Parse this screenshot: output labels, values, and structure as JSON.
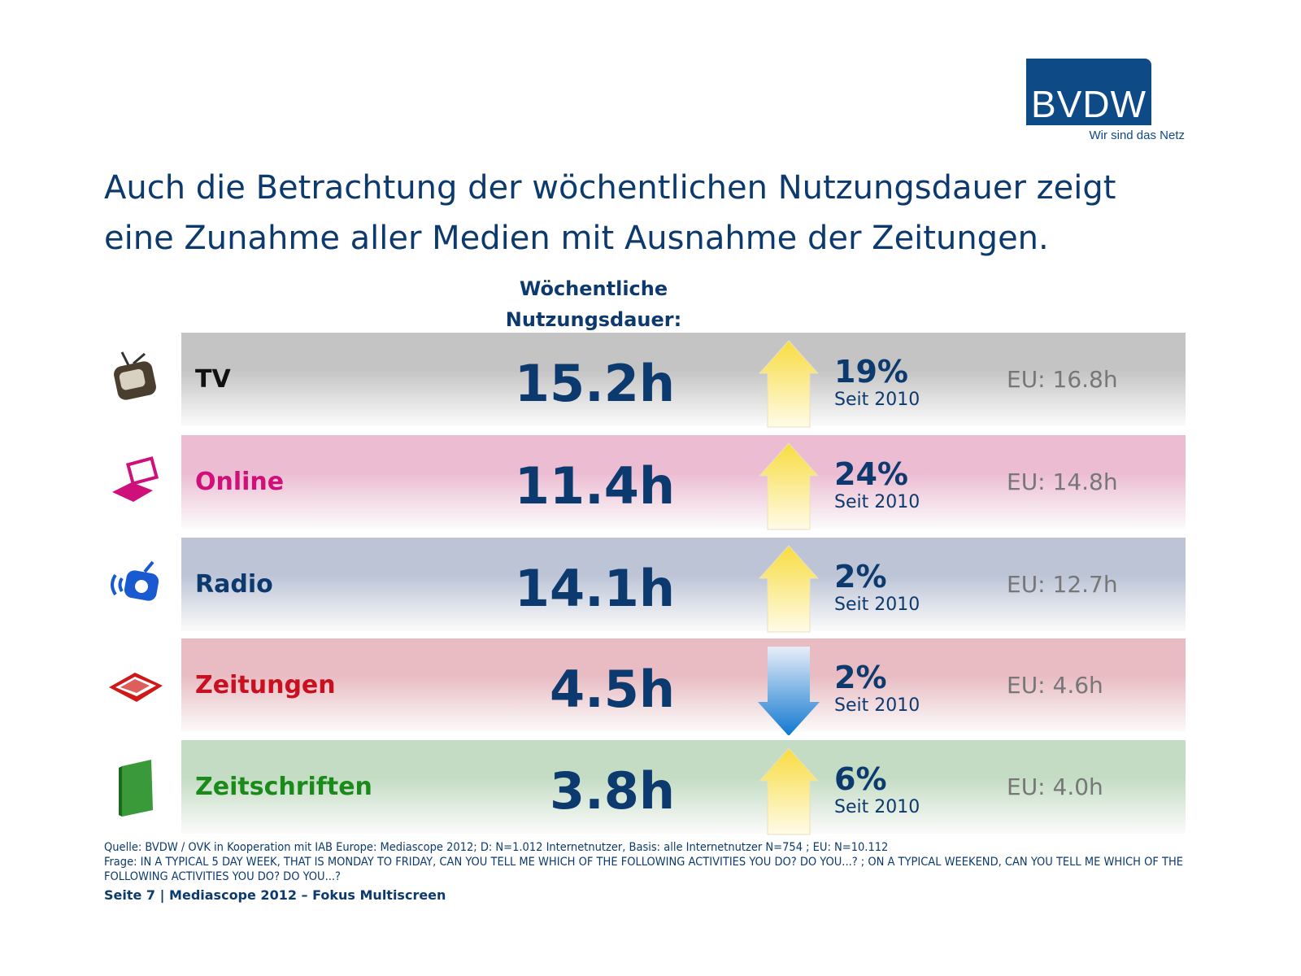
{
  "logo": {
    "text": "BVDW",
    "tagline": "Wir sind das Netz"
  },
  "headline": "Auch die Betrachtung der wöchentlichen Nutzungsdauer zeigt eine Zunahme aller Medien mit Ausnahme der Zeitungen.",
  "column_header": "Wöchentliche Nutzungsdauer:",
  "rows": [
    {
      "label": "TV",
      "value": "15.2h",
      "change": "19%",
      "since": "Seit 2010",
      "eu": "EU: 16.8h",
      "trend": "up",
      "icon": "tv-icon",
      "label_color": "#111111",
      "bg": "#c4c4c4"
    },
    {
      "label": "Online",
      "value": "11.4h",
      "change": "24%",
      "since": "Seit 2010",
      "eu": "EU: 14.8h",
      "trend": "up",
      "icon": "laptop-icon",
      "label_color": "#d0107a",
      "bg": "#ecbcd2"
    },
    {
      "label": "Radio",
      "value": "14.1h",
      "change": "2%",
      "since": "Seit 2010",
      "eu": "EU: 12.7h",
      "trend": "up",
      "icon": "radio-icon",
      "label_color": "#0d3a6e",
      "bg": "#bcc4d6"
    },
    {
      "label": "Zeitungen",
      "value": "4.5h",
      "change": "2%",
      "since": "Seit 2010",
      "eu": "EU: 4.6h",
      "trend": "down",
      "icon": "newspaper-icon",
      "label_color": "#c81020",
      "bg": "#e8bcc2"
    },
    {
      "label": "Zeitschriften",
      "value": "3.8h",
      "change": "6%",
      "since": "Seit 2010",
      "eu": "EU: 4.0h",
      "trend": "up",
      "icon": "magazine-icon",
      "label_color": "#1a8a1a",
      "bg": "#c4dcc4"
    }
  ],
  "source": "Quelle: BVDW / OVK in Kooperation mit IAB Europe: Mediascope 2012; D: N=1.012 Internetnutzer, Basis: alle Internetnutzer N=754 ; EU: N=10.112",
  "question": "Frage: IN A TYPICAL 5 DAY WEEK, THAT IS MONDAY TO FRIDAY, CAN YOU TELL ME WHICH OF THE FOLLOWING ACTIVITIES YOU DO? DO YOU...? ; ON A TYPICAL WEEKEND, CAN YOU TELL ME WHICH OF THE FOLLOWING ACTIVITIES YOU DO? DO YOU...?",
  "footer": "Seite 7 | Mediascope 2012 – Fokus Multiscreen"
}
